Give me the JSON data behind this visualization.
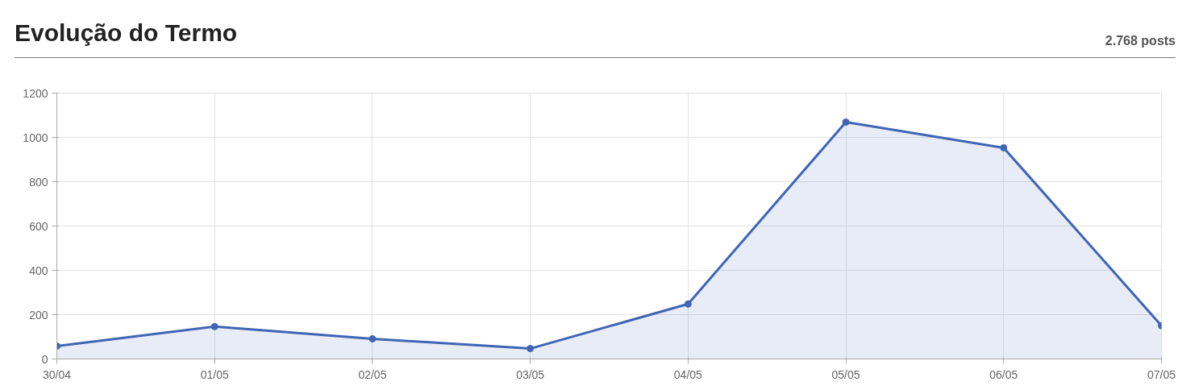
{
  "chart_data": {
    "type": "area",
    "title": "Evolução do Termo",
    "subtitle": "2.768 posts",
    "categories": [
      "30/04",
      "01/05",
      "02/05",
      "03/05",
      "04/05",
      "05/05",
      "06/05",
      "07/05"
    ],
    "series": [
      {
        "color": "#3f65b5",
        "values": [
          58,
          146,
          91,
          47,
          248,
          1069,
          953,
          150
        ]
      }
    ],
    "ylim": [
      0,
      1200
    ],
    "yticks": [
      0,
      200,
      400,
      600,
      800,
      1000,
      1200
    ],
    "grid": true,
    "marker": "circle"
  }
}
